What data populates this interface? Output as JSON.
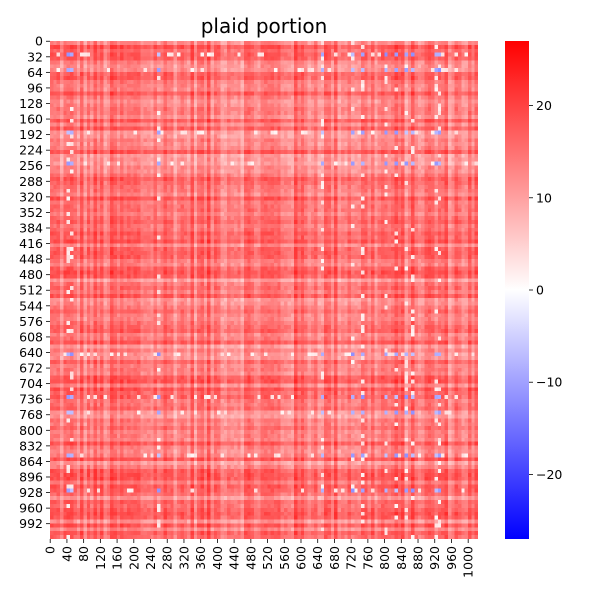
{
  "chart_data": {
    "type": "heatmap",
    "title": "plaid portion",
    "xlabel": "",
    "ylabel": "",
    "n_rows": 1024,
    "n_cols": 1024,
    "x_tick_values": [
      0,
      40,
      80,
      120,
      160,
      200,
      240,
      280,
      320,
      360,
      400,
      440,
      480,
      520,
      560,
      600,
      640,
      680,
      720,
      760,
      800,
      840,
      880,
      920,
      960,
      1000
    ],
    "x_tick_labels": [
      "0",
      "40",
      "80",
      "120",
      "160",
      "200",
      "240",
      "280",
      "320",
      "360",
      "400",
      "440",
      "480",
      "520",
      "560",
      "600",
      "640",
      "680",
      "720",
      "760",
      "800",
      "840",
      "880",
      "920",
      "960",
      "1000"
    ],
    "y_tick_values": [
      0,
      32,
      64,
      96,
      128,
      160,
      192,
      224,
      256,
      288,
      320,
      352,
      384,
      416,
      448,
      480,
      512,
      544,
      576,
      608,
      640,
      672,
      704,
      736,
      768,
      800,
      832,
      864,
      896,
      928,
      960,
      992
    ],
    "y_tick_labels": [
      "0",
      "32",
      "64",
      "96",
      "128",
      "160",
      "192",
      "224",
      "256",
      "288",
      "320",
      "352",
      "384",
      "416",
      "448",
      "480",
      "512",
      "544",
      "576",
      "608",
      "640",
      "672",
      "704",
      "736",
      "768",
      "800",
      "832",
      "864",
      "896",
      "928",
      "960",
      "992"
    ],
    "colorbar": {
      "vmin": -27,
      "vmax": 27,
      "ticks": [
        20,
        10,
        0,
        -10,
        -20
      ],
      "tick_labels": [
        "20",
        "10",
        "0",
        "−10",
        "−20"
      ],
      "colormap": "bwr",
      "colors": [
        "#0000ff",
        "#ffffff",
        "#ff0000"
      ]
    },
    "typical_value": 14,
    "value_range_shown": [
      -14,
      22
    ],
    "negative_pockets_rows": [
      30,
      60,
      190,
      255,
      640,
      735,
      765,
      850,
      920
    ],
    "negative_pockets_cols": [
      45,
      55,
      260,
      650,
      720,
      750,
      800,
      830,
      850,
      870,
      920,
      930
    ]
  }
}
